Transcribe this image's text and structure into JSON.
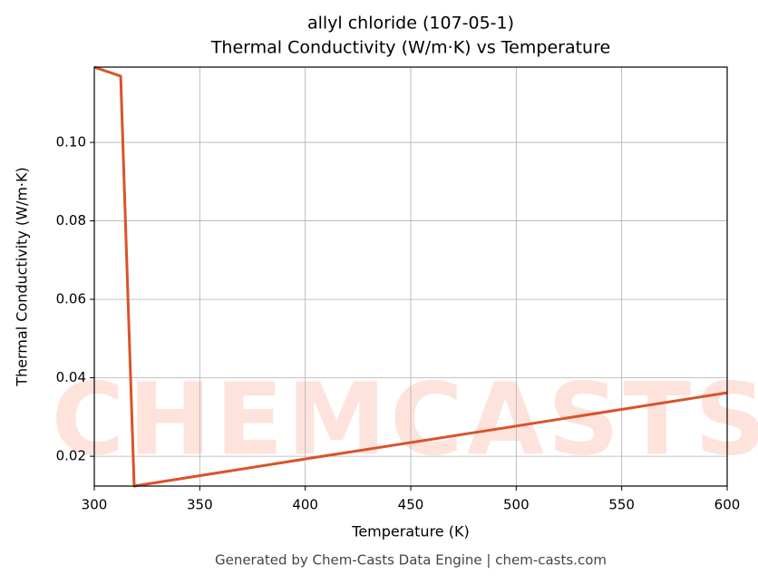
{
  "chart_data": {
    "type": "line",
    "title": "allyl chloride (107-05-1)",
    "subtitle": "Thermal Conductivity (W/m·K) vs Temperature",
    "x_label": "Temperature (K)",
    "y_label": "Thermal Conductivity (W/m·K)",
    "watermark": "CHEMCASTS",
    "footer": "Generated by Chem-Casts Data Engine | chem-casts.com",
    "x": [
      300,
      312.5,
      318.9,
      400,
      500,
      600
    ],
    "series": [
      {
        "name": "Thermal Conductivity",
        "color": "#d9532a",
        "values": [
          0.1192,
          0.1169,
          0.0124,
          0.0193,
          0.0277,
          0.0362
        ]
      }
    ],
    "xlim": [
      300,
      600
    ],
    "xticks": [
      300,
      350,
      400,
      450,
      500,
      550,
      600
    ],
    "ylim": [
      0.0124,
      0.1192
    ],
    "yticks": [
      {
        "value": 0.02,
        "label": "0.02"
      },
      {
        "value": 0.04,
        "label": "0.04"
      },
      {
        "value": 0.06,
        "label": "0.06"
      },
      {
        "value": 0.08,
        "label": "0.08"
      },
      {
        "value": 0.1,
        "label": "0.10"
      }
    ],
    "grid": true
  }
}
